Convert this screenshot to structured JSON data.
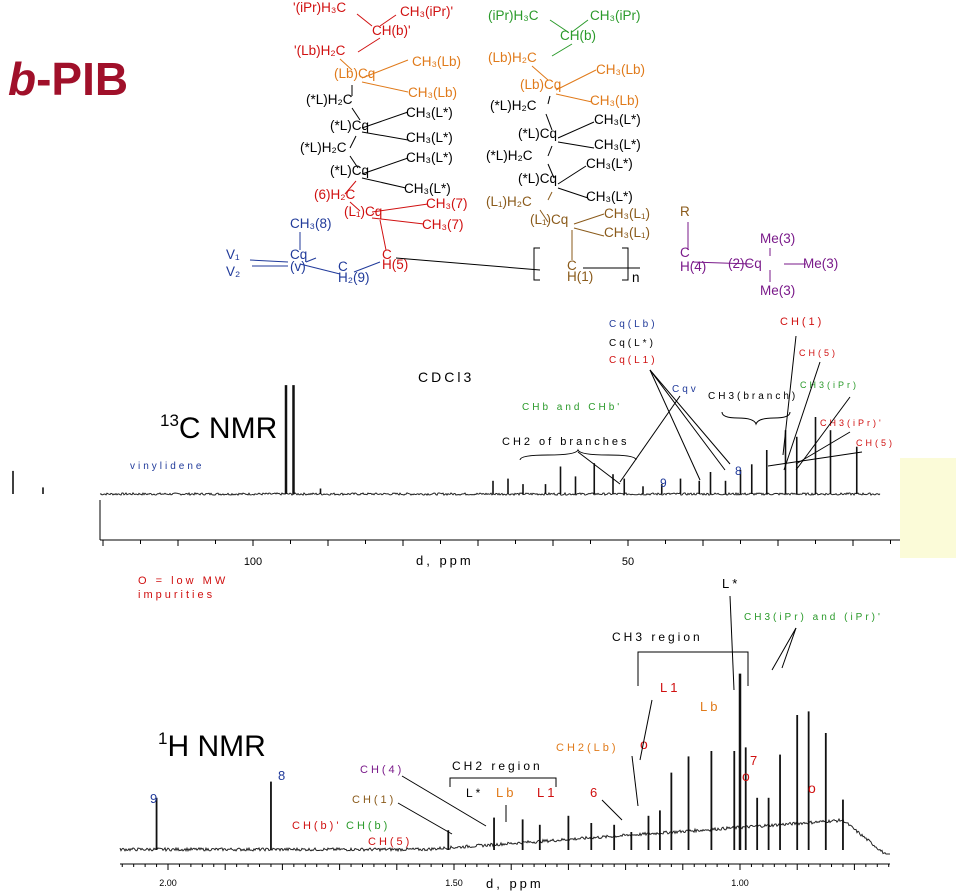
{
  "title": "b-PIB",
  "title_parts": {
    "prefix": "b",
    "rest": "-PIB"
  },
  "colors": {
    "title": "#a0102a",
    "red": "#d01010",
    "green": "#2a9a2a",
    "orange": "#e07a1a",
    "blue": "#203a9a",
    "purple": "#7a1a8a",
    "brown": "#8a5a1a",
    "black": "#000000",
    "pale": "#fbfbd8"
  },
  "structure": {
    "atoms": [
      {
        "text": "'(iPr)H₃C",
        "color": "red"
      },
      {
        "text": "CH₃(iPr)'",
        "color": "red"
      },
      {
        "text": "CH(b)'",
        "color": "red"
      },
      {
        "text": "'(Lb)H₂C",
        "color": "red"
      },
      {
        "text": "(Lb)Cq",
        "color": "orange"
      },
      {
        "text": "CH₃(Lb)",
        "color": "orange"
      },
      {
        "text": "CH₃(Lb)",
        "color": "orange"
      },
      {
        "text": "(*L)H₂C",
        "color": "black"
      },
      {
        "text": "CH₃(L*)",
        "color": "black"
      },
      {
        "text": "(*L)Cq",
        "color": "black"
      },
      {
        "text": "CH₃(L*)",
        "color": "black"
      },
      {
        "text": "(*L)H₂C",
        "color": "black"
      },
      {
        "text": "CH₃(L*)",
        "color": "black"
      },
      {
        "text": "(*L)Cq",
        "color": "black"
      },
      {
        "text": "CH₃(L*)",
        "color": "black"
      },
      {
        "text": "(6)H₂C",
        "color": "red"
      },
      {
        "text": "CH₃(7)",
        "color": "red"
      },
      {
        "text": "(L₁)Cq",
        "color": "red"
      },
      {
        "text": "CH₃(7)",
        "color": "red"
      },
      {
        "text": "CH₃(8)",
        "color": "blue"
      },
      {
        "text": "V₁",
        "color": "blue"
      },
      {
        "text": "V₂",
        "color": "blue"
      },
      {
        "text": "Cq",
        "color": "blue"
      },
      {
        "text": "(v)",
        "color": "blue"
      },
      {
        "text": "C",
        "color": "red"
      },
      {
        "text": "H(5)",
        "color": "red"
      },
      {
        "text": "H₂(9)",
        "color": "blue"
      },
      {
        "text": "C",
        "color": "blue"
      },
      {
        "text": "(iPr)H₃C",
        "color": "green"
      },
      {
        "text": "CH₃(iPr)",
        "color": "green"
      },
      {
        "text": "CH(b)",
        "color": "green"
      },
      {
        "text": "(Lb)H₂C",
        "color": "orange"
      },
      {
        "text": "(Lb)Cq",
        "color": "orange"
      },
      {
        "text": "CH₃(Lb)",
        "color": "orange"
      },
      {
        "text": "CH₃(Lb)",
        "color": "orange"
      },
      {
        "text": "(*L)H₂C",
        "color": "black"
      },
      {
        "text": "CH₃(L*)",
        "color": "black"
      },
      {
        "text": "(*L)Cq",
        "color": "black"
      },
      {
        "text": "CH₃(L*)",
        "color": "black"
      },
      {
        "text": "(*L)H₂C",
        "color": "black"
      },
      {
        "text": "CH₃(L*)",
        "color": "black"
      },
      {
        "text": "(*L)Cq",
        "color": "black"
      },
      {
        "text": "CH₃(L*)",
        "color": "black"
      },
      {
        "text": "(L₁)H₂C",
        "color": "brown"
      },
      {
        "text": "CH₃(L₁)",
        "color": "brown"
      },
      {
        "text": "(L₁)Cq",
        "color": "brown"
      },
      {
        "text": "CH₃(L₁)",
        "color": "brown"
      },
      {
        "text": "C",
        "color": "brown"
      },
      {
        "text": "H(1)",
        "color": "brown"
      },
      {
        "text": "n",
        "color": "black"
      },
      {
        "text": "R",
        "color": "brown"
      },
      {
        "text": "C",
        "color": "purple"
      },
      {
        "text": "H(4)",
        "color": "purple"
      },
      {
        "text": "(2)Cq",
        "color": "purple"
      },
      {
        "text": "Me(3)",
        "color": "purple"
      },
      {
        "text": "Me(3)",
        "color": "purple"
      },
      {
        "text": "Me(3)",
        "color": "purple"
      }
    ]
  },
  "chart_data": [
    {
      "type": "line",
      "title": "13C NMR",
      "xlabel": "d, ppm",
      "x_ticks": [
        "100",
        "50"
      ],
      "x_axis": "reversed",
      "x_range_approx": [
        136,
        0
      ],
      "series": [
        {
          "x": [
            132,
            128,
            95.6,
            94.6,
            91,
            68,
            66,
            64,
            61,
            59,
            57,
            54.5,
            52,
            50.5,
            48,
            45.5,
            43,
            40.5,
            39,
            37,
            35,
            33.5,
            31.5,
            29,
            27.5,
            25,
            23,
            19.5
          ],
          "y": [
            0.21,
            0.06,
            0.99,
            0.99,
            0.05,
            0.12,
            0.14,
            0.09,
            0.09,
            0.25,
            0.16,
            0.28,
            0.18,
            0.14,
            0.07,
            0.09,
            0.14,
            0.12,
            0.2,
            0.12,
            0.22,
            0.27,
            0.4,
            0.58,
            0.52,
            0.7,
            0.58,
            0.43
          ]
        }
      ],
      "annotations": [
        {
          "text": "vinylidene",
          "color": "blue"
        },
        {
          "text": "CDCl3",
          "color": "black"
        },
        {
          "text": "CHb and CHb'",
          "color": "green",
          "color2": "red"
        },
        {
          "text": "CH2 of branches",
          "color": "black"
        },
        {
          "text": "Cq(Lb)",
          "color": "blue"
        },
        {
          "text": "Cq(L*)",
          "color": "black"
        },
        {
          "text": "Cq(L1)",
          "color": "red"
        },
        {
          "text": "Cqv",
          "color": "blue"
        },
        {
          "text": "CH3(branch)",
          "color": "black"
        },
        {
          "text": "CH(1)",
          "color": "red"
        },
        {
          "text": "CH(5)",
          "color": "red"
        },
        {
          "text": "CH3(iPr)",
          "color": "green"
        },
        {
          "text": "CH3(iPr)'",
          "color": "red"
        },
        {
          "text": "CH(5)",
          "color": "red"
        },
        {
          "text": "9",
          "color": "blue"
        },
        {
          "text": "8",
          "color": "blue"
        }
      ]
    },
    {
      "type": "line",
      "title": "1H NMR",
      "xlabel": "d, ppm",
      "x_ticks": [
        "2.00",
        "1.50",
        "1.00"
      ],
      "x_axis": "reversed",
      "x_range_approx": [
        2.12,
        0.72
      ],
      "series": [
        {
          "x": [
            2.02,
            1.82,
            1.51,
            1.43,
            1.38,
            1.35,
            1.3,
            1.26,
            1.22,
            1.19,
            1.16,
            1.14,
            1.12,
            1.09,
            1.05,
            1.01,
            1.0,
            0.99,
            0.97,
            0.95,
            0.93,
            0.9,
            0.88,
            0.85,
            0.82
          ],
          "y": [
            0.29,
            0.38,
            0.11,
            0.18,
            0.17,
            0.14,
            0.19,
            0.15,
            0.14,
            0.1,
            0.19,
            0.22,
            0.43,
            0.52,
            0.55,
            0.55,
            0.98,
            0.57,
            0.29,
            0.29,
            0.53,
            0.75,
            0.77,
            0.65,
            0.28
          ]
        }
      ],
      "annotations": [
        {
          "text": "O = low MW",
          "color": "red"
        },
        {
          "text": "impurities",
          "color": "red"
        },
        {
          "text": "L*",
          "color": "black"
        },
        {
          "text": "CH3(iPr) and (iPr)'",
          "color": "green",
          "color2": "red"
        },
        {
          "text": "CH3 region",
          "color": "black"
        },
        {
          "text": "L1",
          "color": "red"
        },
        {
          "text": "Lb",
          "color": "orange"
        },
        {
          "text": "CH2(Lb)",
          "color": "orange"
        },
        {
          "text": "o",
          "color": "red"
        },
        {
          "text": "7",
          "color": "red"
        },
        {
          "text": "o",
          "color": "red"
        },
        {
          "text": "o",
          "color": "red"
        },
        {
          "text": "CH(4)",
          "color": "purple"
        },
        {
          "text": "CH2 region",
          "color": "black"
        },
        {
          "text": "L*",
          "color": "black"
        },
        {
          "text": "Lb",
          "color": "orange"
        },
        {
          "text": "L1",
          "color": "red"
        },
        {
          "text": "6",
          "color": "red"
        },
        {
          "text": "9",
          "color": "blue"
        },
        {
          "text": "8",
          "color": "blue"
        },
        {
          "text": "CH(1)",
          "color": "brown"
        },
        {
          "text": "CH(b)'",
          "color": "red"
        },
        {
          "text": "CH(b)",
          "color": "green"
        },
        {
          "text": "CH(5)",
          "color": "red"
        }
      ]
    }
  ]
}
